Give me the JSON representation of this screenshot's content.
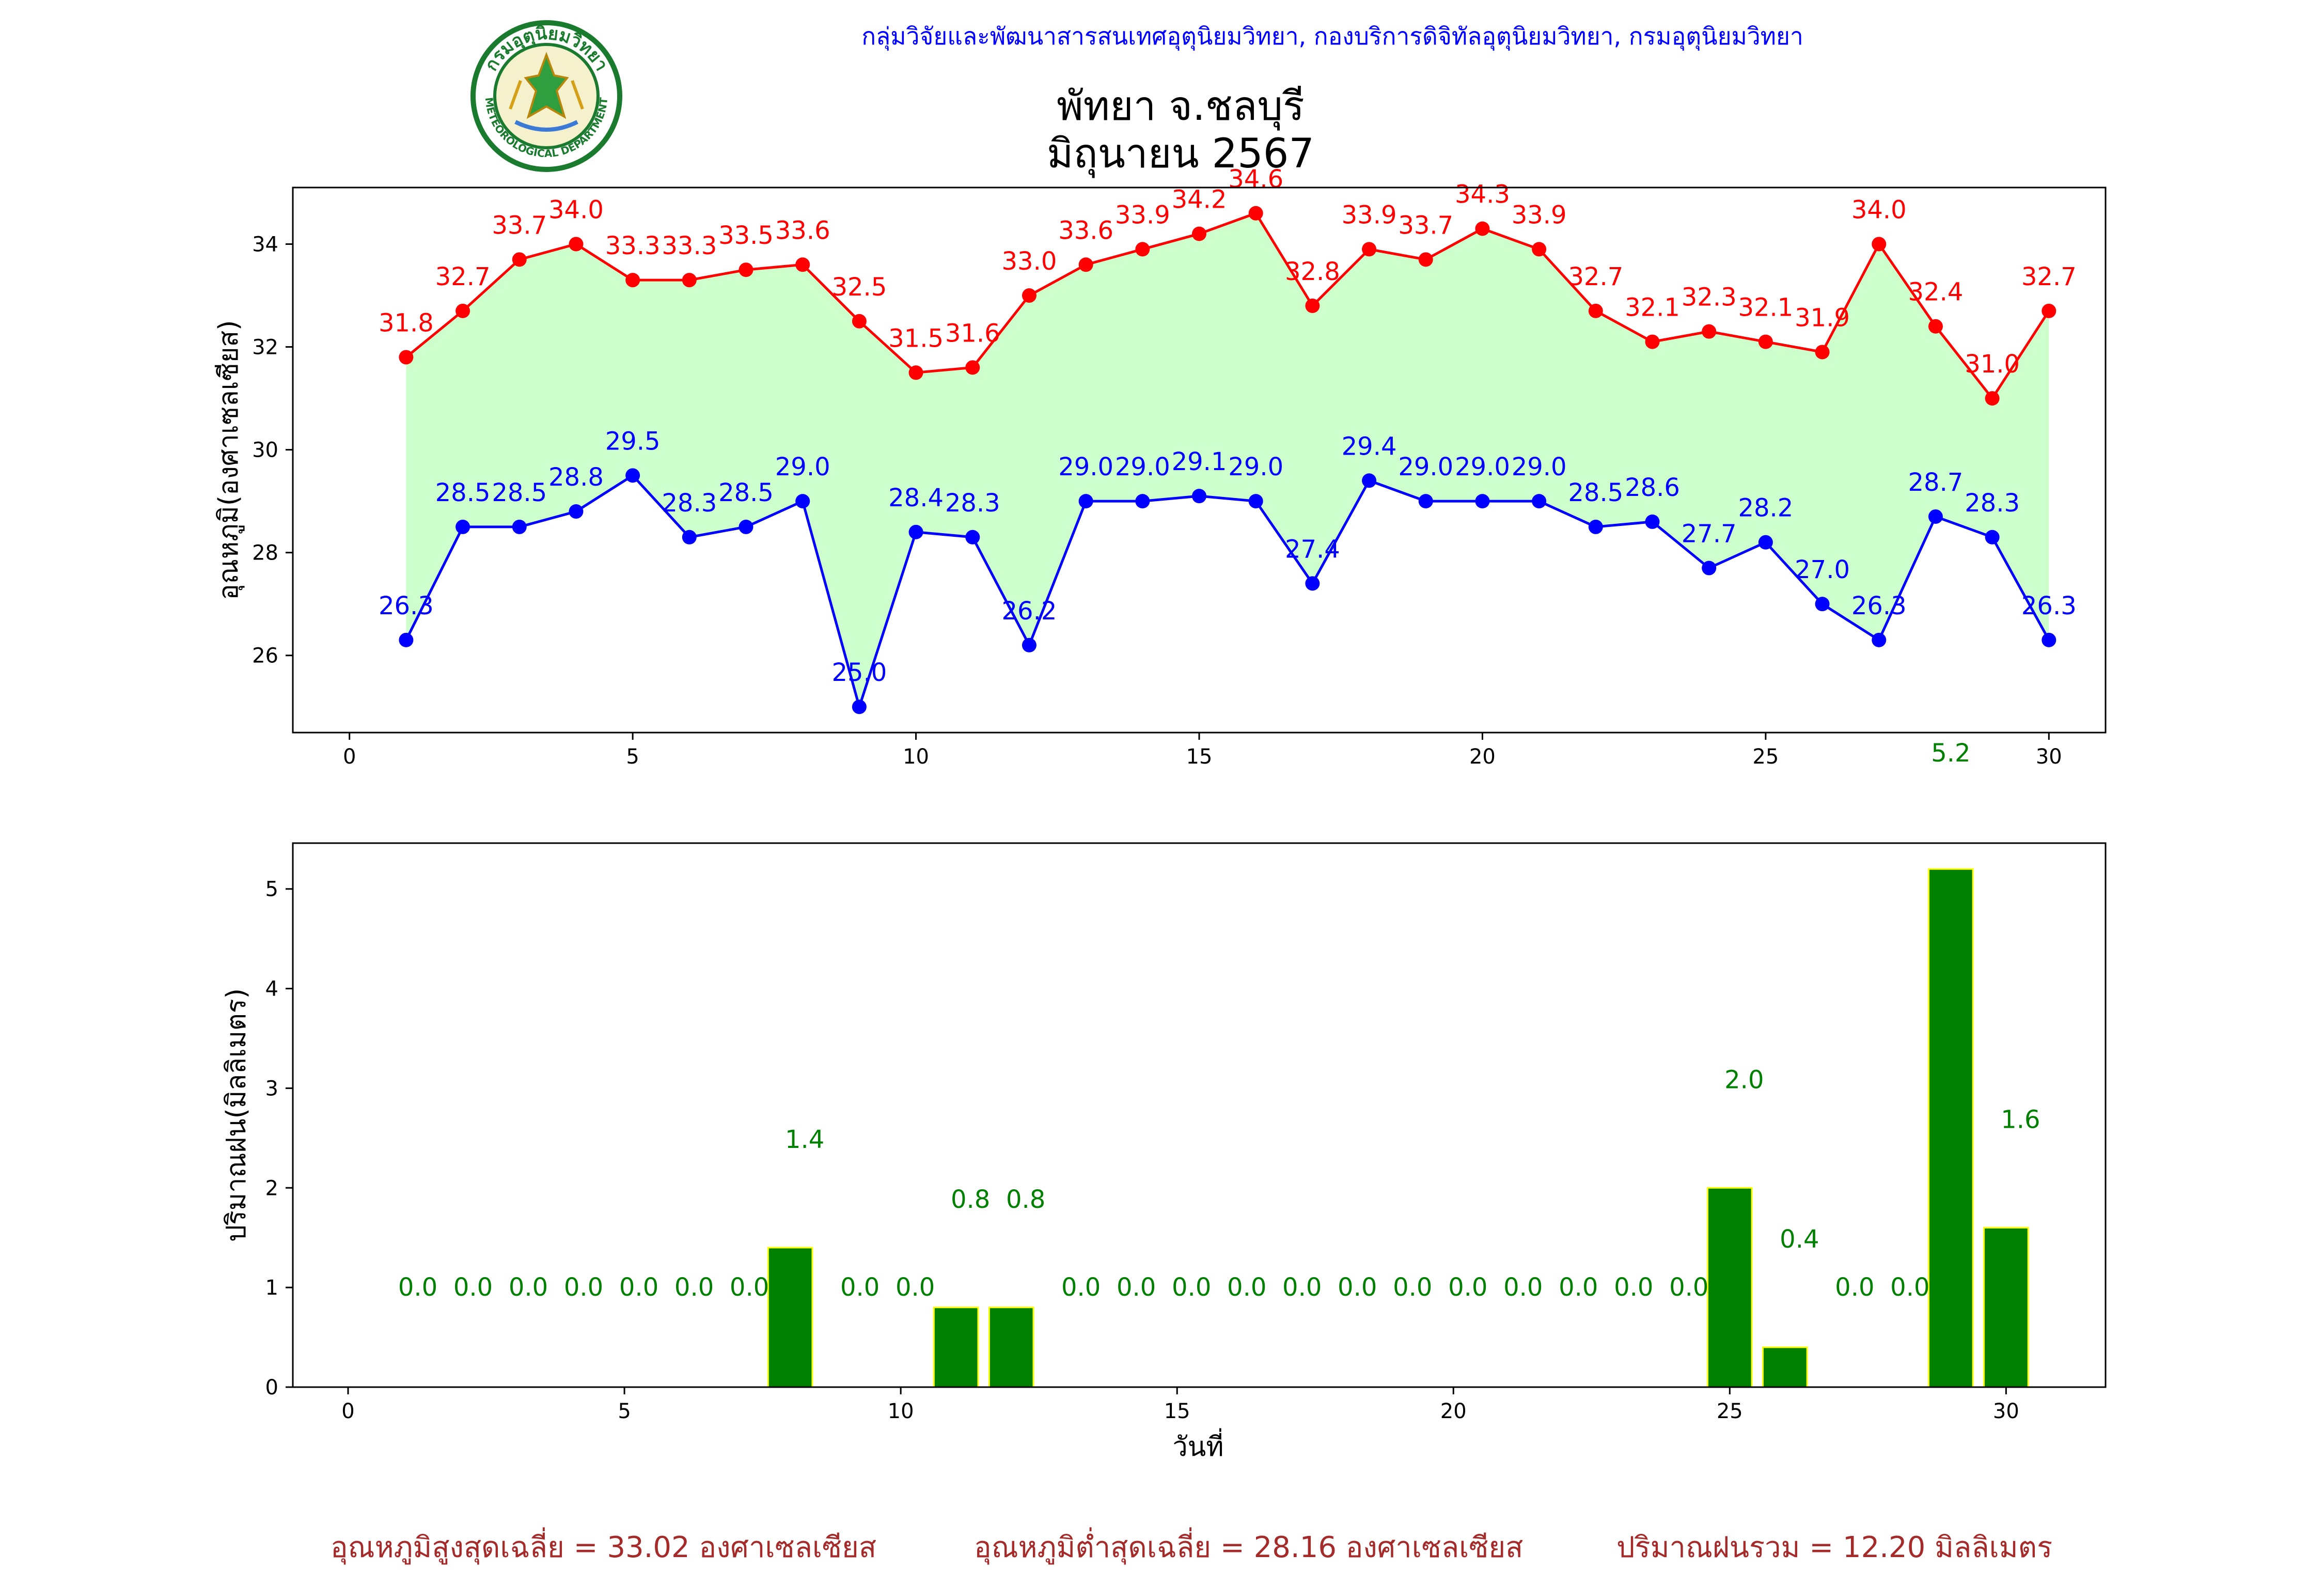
{
  "header": {
    "credit": "กลุ่มวิจัยและพัฒนาสารสนเทศอุตุนิยมวิทยา, กองบริการดิจิทัลอุตุนิยมวิทยา, กรมอุตุนิยมวิทยา",
    "title_line1": "พัทยา จ.ชลบุรี",
    "title_line2": "มิถุนายน 2567",
    "logo": {
      "icon": "meteorological-department-seal-icon",
      "text_top": "กรมอุตุนิยมวิทยา",
      "text_bottom": "METEOROLOGICAL DEPARTMENT"
    }
  },
  "chart_data": [
    {
      "type": "line",
      "ylabel": "อุณหภูมิ(องศาเซลเซียส)",
      "xlim": [
        -1,
        31
      ],
      "ylim": [
        24.5,
        35.1
      ],
      "xticks": [
        0,
        5,
        10,
        15,
        20,
        25,
        30
      ],
      "yticks": [
        26,
        28,
        30,
        32,
        34
      ],
      "x": [
        1,
        2,
        3,
        4,
        5,
        6,
        7,
        8,
        9,
        10,
        11,
        12,
        13,
        14,
        15,
        16,
        17,
        18,
        19,
        20,
        21,
        22,
        23,
        24,
        25,
        26,
        27,
        28,
        29,
        30
      ],
      "series": [
        {
          "color": "#ff0000",
          "values": [
            31.8,
            32.7,
            33.7,
            34.0,
            33.3,
            33.3,
            33.5,
            33.6,
            32.5,
            31.5,
            31.6,
            33.0,
            33.6,
            33.9,
            34.2,
            34.6,
            32.8,
            33.9,
            33.7,
            34.3,
            33.9,
            32.7,
            32.1,
            32.3,
            32.1,
            31.9,
            34.0,
            32.4,
            31.0,
            32.7
          ]
        },
        {
          "color": "#0000ff",
          "values": [
            26.3,
            28.5,
            28.5,
            28.8,
            29.5,
            28.3,
            28.5,
            29.0,
            25.0,
            28.4,
            28.3,
            26.2,
            29.0,
            29.0,
            29.1,
            29.0,
            27.4,
            29.4,
            29.0,
            29.0,
            29.0,
            28.5,
            28.6,
            27.7,
            28.2,
            27.0,
            26.3,
            28.7,
            28.3,
            26.3
          ]
        }
      ],
      "fill_color": "#ccffcc"
    },
    {
      "type": "bar",
      "xlabel": "วันที่",
      "ylabel": "ปริมาณฝน(มิลลิเมตร)",
      "xlim": [
        -1,
        31.8
      ],
      "ylim": [
        0,
        5.46
      ],
      "xticks": [
        0,
        5,
        10,
        15,
        20,
        25,
        30
      ],
      "yticks": [
        0,
        1,
        2,
        3,
        4,
        5
      ],
      "x": [
        1,
        2,
        3,
        4,
        5,
        6,
        7,
        8,
        9,
        10,
        11,
        12,
        13,
        14,
        15,
        16,
        17,
        18,
        19,
        20,
        21,
        22,
        23,
        24,
        25,
        26,
        27,
        28,
        29,
        30
      ],
      "values": [
        0.0,
        0.0,
        0.0,
        0.0,
        0.0,
        0.0,
        0.0,
        1.4,
        0.0,
        0.0,
        0.8,
        0.8,
        0.0,
        0.0,
        0.0,
        0.0,
        0.0,
        0.0,
        0.0,
        0.0,
        0.0,
        0.0,
        0.0,
        0.0,
        2.0,
        0.4,
        0.0,
        0.0,
        5.2,
        1.6
      ],
      "bar_color": "#008000",
      "edge_color": "#ffff00",
      "label_color": "#008000"
    }
  ],
  "footer": {
    "avg_max": "อุณหภูมิสูงสุดเฉลี่ย = 33.02 องศาเซลเซียส",
    "avg_min": "อุณหภูมิต่ำสุดเฉลี่ย = 28.16 องศาเซลเซียส",
    "total_rain": "ปริมาณฝนรวม = 12.20 มิลลิเมตร"
  }
}
